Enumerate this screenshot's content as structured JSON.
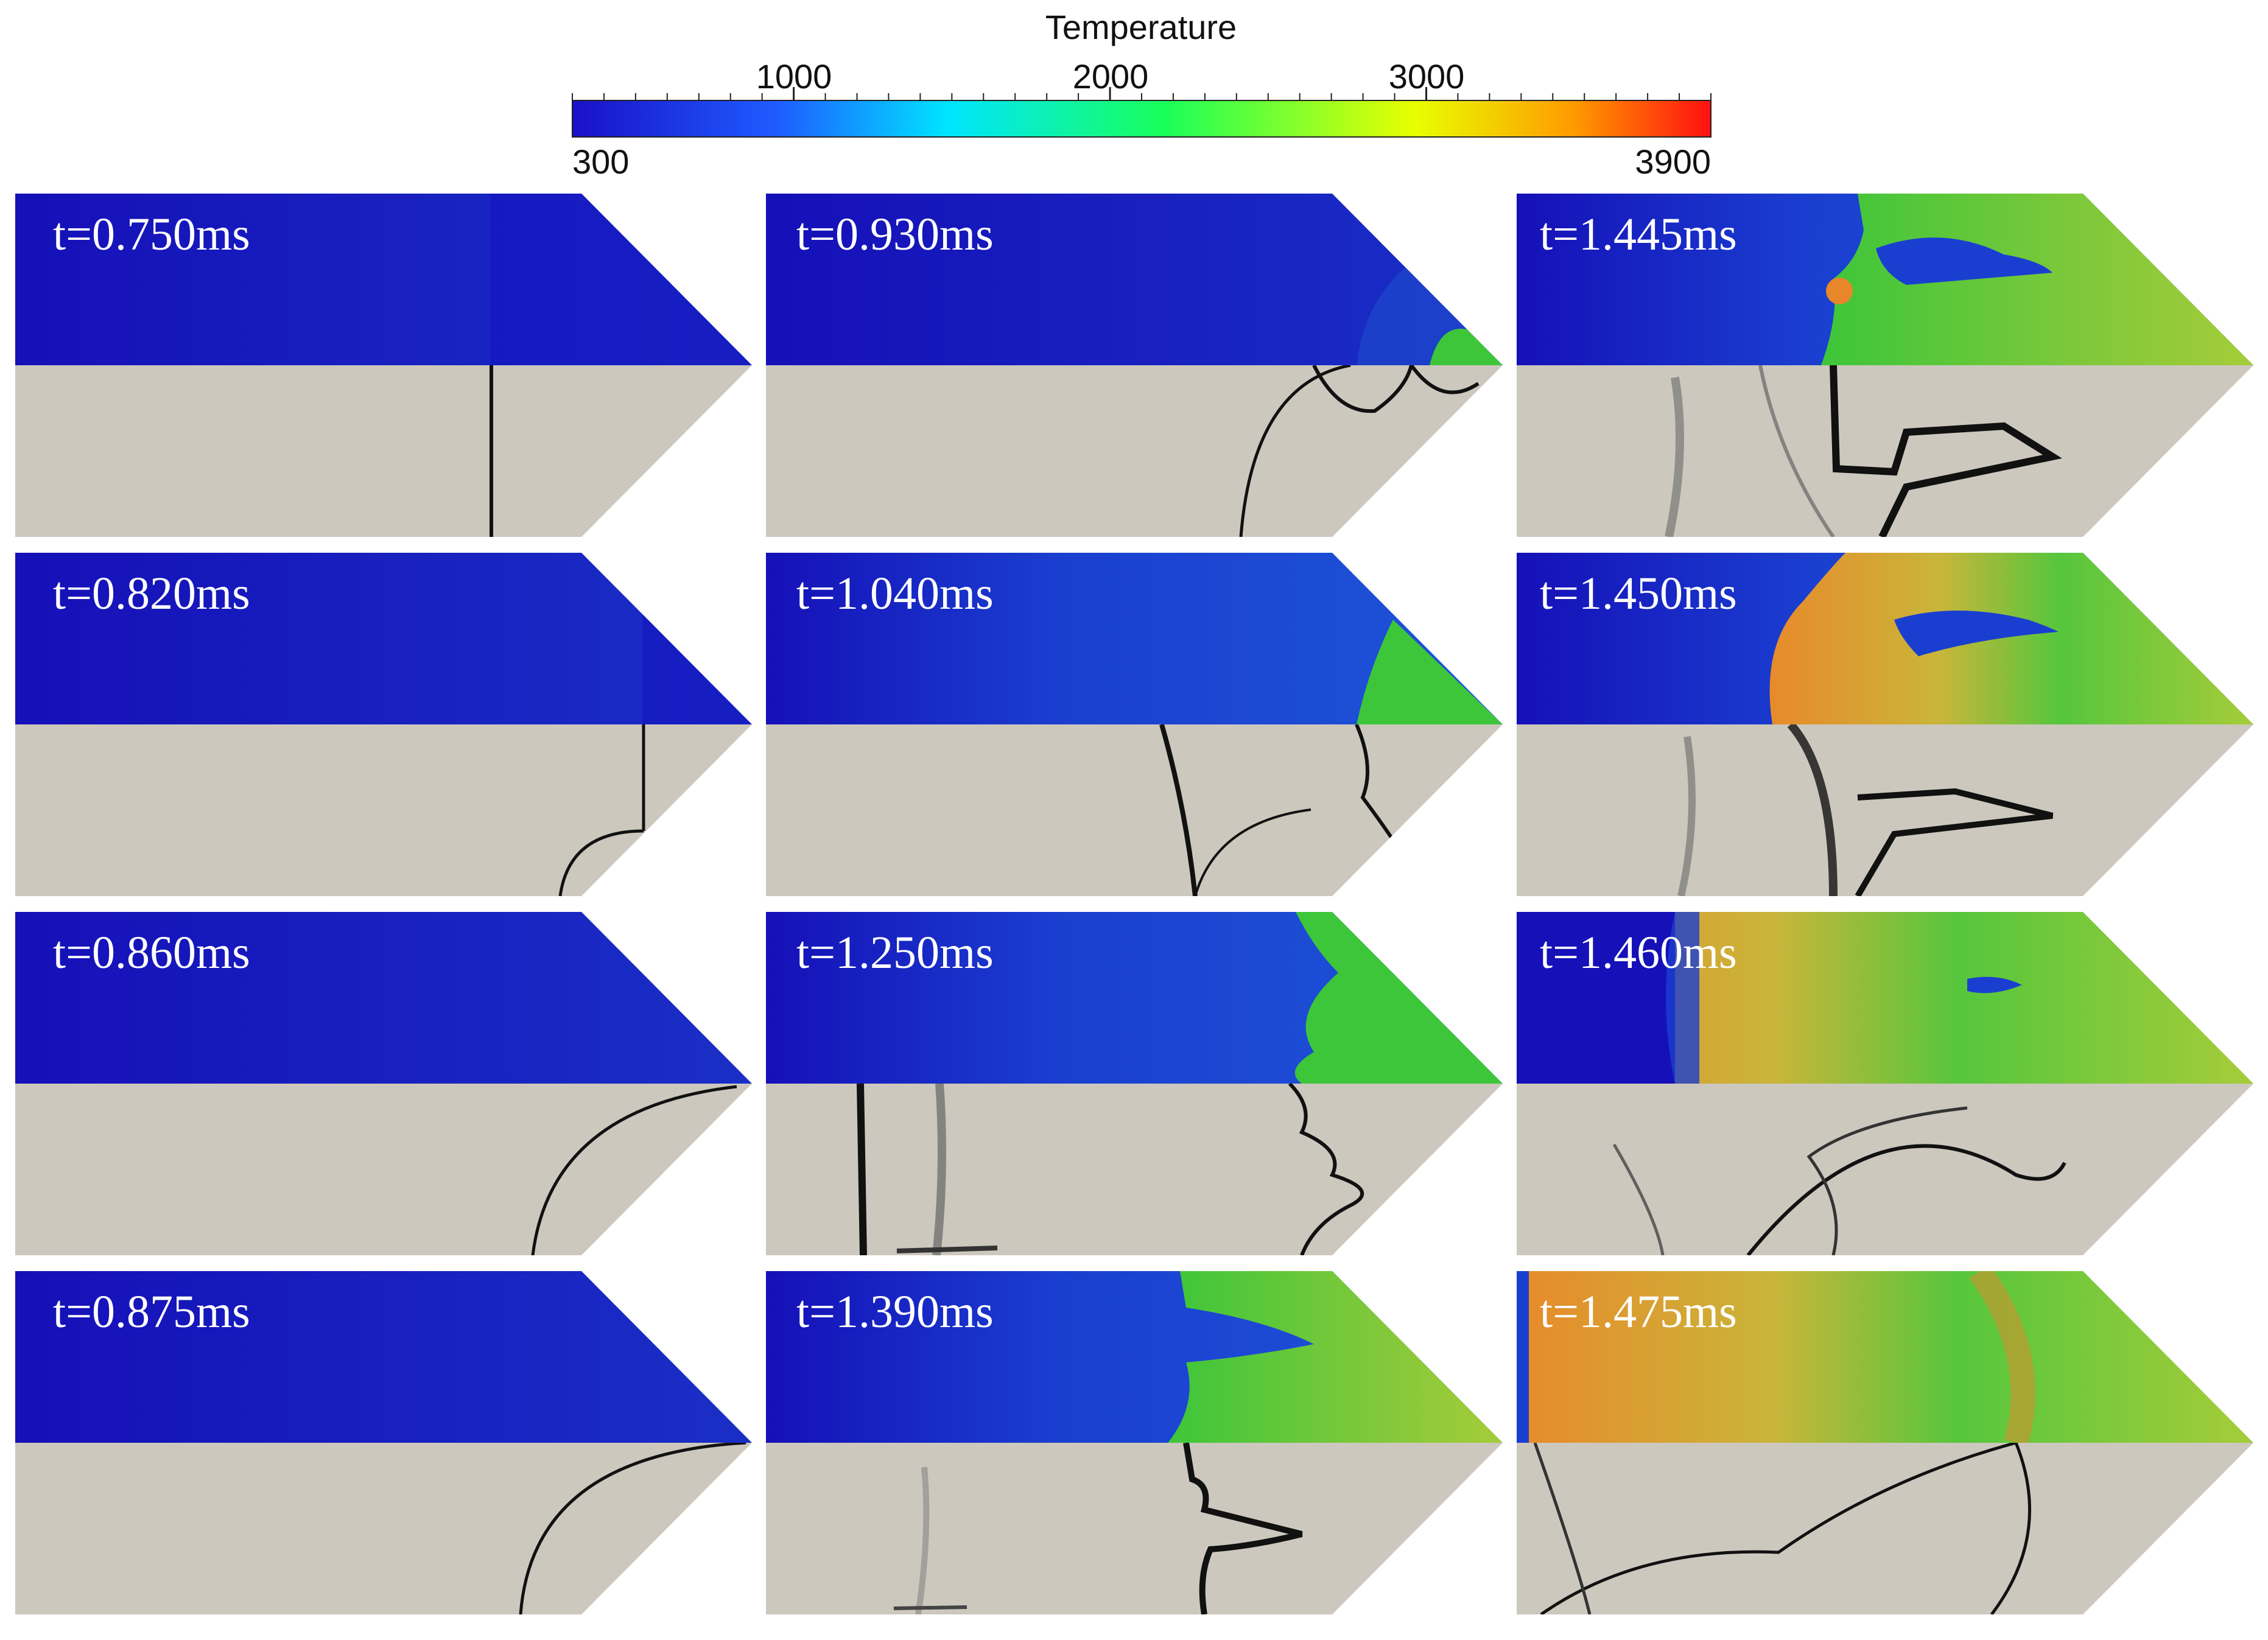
{
  "colorbar": {
    "title": "Temperature",
    "min_label": "300",
    "max_label": "3900",
    "ticks": [
      "1000",
      "2000",
      "3000"
    ],
    "range": [
      300,
      3900
    ],
    "major_values": [
      1000,
      2000,
      3000
    ],
    "colors": [
      "#1a10c8",
      "#1e5cff",
      "#00e5ff",
      "#19ff5a",
      "#e8ff00",
      "#ff9a00",
      "#ff1010"
    ]
  },
  "panel_colors": {
    "cold": "#1510b0",
    "gas_blue": "#1a3fd0",
    "warm_green": "#3dc63a",
    "yellow_green": "#a6cc3a",
    "hot_orange": "#e8862a",
    "lower_background": "#ccc8be",
    "front_line": "#111111"
  },
  "panels": [
    {
      "time": "t=0.750ms",
      "column": 1,
      "row": 1
    },
    {
      "time": "t=0.820ms",
      "column": 1,
      "row": 2
    },
    {
      "time": "t=0.860ms",
      "column": 1,
      "row": 3
    },
    {
      "time": "t=0.875ms",
      "column": 1,
      "row": 4
    },
    {
      "time": "t=0.930ms",
      "column": 2,
      "row": 1
    },
    {
      "time": "t=1.040ms",
      "column": 2,
      "row": 2
    },
    {
      "time": "t=1.250ms",
      "column": 2,
      "row": 3
    },
    {
      "time": "t=1.390ms",
      "column": 2,
      "row": 4
    },
    {
      "time": "t=1.445ms",
      "column": 3,
      "row": 1
    },
    {
      "time": "t=1.450ms",
      "column": 3,
      "row": 2
    },
    {
      "time": "t=1.460ms",
      "column": 3,
      "row": 3
    },
    {
      "time": "t=1.475ms",
      "column": 3,
      "row": 4
    }
  ]
}
